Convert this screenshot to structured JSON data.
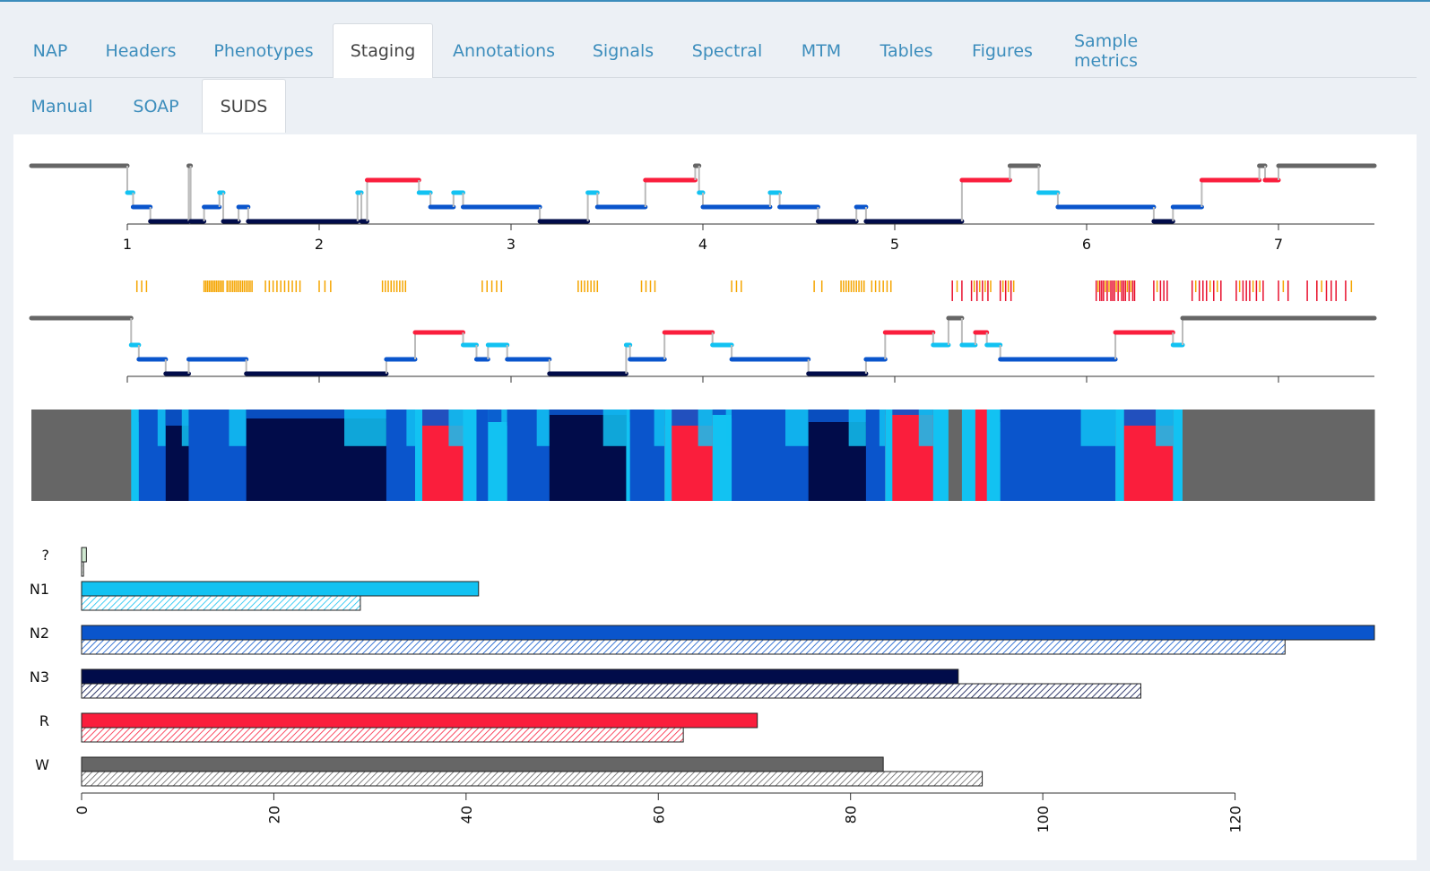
{
  "tabs": {
    "main": [
      {
        "label": "NAP",
        "name": "tab-nap",
        "w": 82
      },
      {
        "label": "Headers",
        "name": "tab-headers",
        "w": 120
      },
      {
        "label": "Phenotypes",
        "name": "tab-phenotypes",
        "w": 154
      },
      {
        "label": "Staging",
        "name": "tab-staging",
        "w": 112,
        "active": true
      },
      {
        "label": "Annotations",
        "name": "tab-annotations",
        "w": 158
      },
      {
        "label": "Signals",
        "name": "tab-signals",
        "w": 108
      },
      {
        "label": "Spectral",
        "name": "tab-spectral",
        "w": 124
      },
      {
        "label": "MTM",
        "name": "tab-mtm",
        "w": 86
      },
      {
        "label": "Tables",
        "name": "tab-tables",
        "w": 104
      },
      {
        "label": "Figures",
        "name": "tab-figures",
        "w": 110
      },
      {
        "label": "Sample metrics",
        "name": "tab-sample-metrics",
        "w": 170
      }
    ],
    "sub": [
      {
        "label": "Manual",
        "name": "subtab-manual",
        "w": 108
      },
      {
        "label": "SOAP",
        "name": "subtab-soap",
        "w": 102
      },
      {
        "label": "SUDS",
        "name": "subtab-suds",
        "w": 94,
        "active": true
      }
    ]
  },
  "colors": {
    "W": "#666666",
    "N1": "#12c2f2",
    "N2": "#0a55cc",
    "N3": "#010c4a",
    "R": "#fa1e3c",
    "U": "#cfe8d0",
    "connector": "#bbbbbb",
    "conf_low": "#f5a500",
    "conf_high": "#e8102e"
  },
  "chart_data": [
    {
      "type": "hypnogram",
      "series": "stages-a",
      "x_ticks": [
        "1",
        "2",
        "3",
        "4",
        "5",
        "6",
        "7"
      ],
      "xlim": [
        0.5,
        7.5
      ],
      "stages": [
        [
          "W",
          0.5,
          1.0
        ],
        [
          "N1",
          1.0,
          1.03
        ],
        [
          "N2",
          1.03,
          1.12
        ],
        [
          "N3",
          1.12,
          1.32
        ],
        [
          "W",
          1.32,
          1.33
        ],
        [
          "N3",
          1.33,
          1.4
        ],
        [
          "N2",
          1.4,
          1.48
        ],
        [
          "N1",
          1.48,
          1.5
        ],
        [
          "N3",
          1.5,
          1.58
        ],
        [
          "N2",
          1.58,
          1.63
        ],
        [
          "N3",
          1.63,
          2.2
        ],
        [
          "N1",
          2.2,
          2.22
        ],
        [
          "N3",
          2.22,
          2.25
        ],
        [
          "R",
          2.25,
          2.52
        ],
        [
          "N1",
          2.52,
          2.58
        ],
        [
          "N2",
          2.58,
          2.7
        ],
        [
          "N1",
          2.7,
          2.75
        ],
        [
          "N2",
          2.75,
          3.15
        ],
        [
          "N3",
          3.15,
          3.4
        ],
        [
          "N1",
          3.4,
          3.45
        ],
        [
          "N2",
          3.45,
          3.7
        ],
        [
          "R",
          3.7,
          3.96
        ],
        [
          "W",
          3.96,
          3.98
        ],
        [
          "N1",
          3.98,
          4.0
        ],
        [
          "N2",
          4.0,
          4.35
        ],
        [
          "N1",
          4.35,
          4.4
        ],
        [
          "N2",
          4.4,
          4.6
        ],
        [
          "N3",
          4.6,
          4.8
        ],
        [
          "N2",
          4.8,
          4.85
        ],
        [
          "N3",
          4.85,
          5.35
        ],
        [
          "R",
          5.35,
          5.6
        ],
        [
          "W",
          5.6,
          5.75
        ],
        [
          "N1",
          5.75,
          5.85
        ],
        [
          "N2",
          5.85,
          6.35
        ],
        [
          "N3",
          6.35,
          6.45
        ],
        [
          "N2",
          6.45,
          6.6
        ],
        [
          "R",
          6.6,
          6.9
        ],
        [
          "W",
          6.9,
          6.93
        ],
        [
          "R",
          6.93,
          7.0
        ],
        [
          "W",
          7.0,
          7.5
        ]
      ]
    },
    {
      "type": "hypnogram",
      "series": "stages-b",
      "x_ticks": [
        "1",
        "2",
        "3",
        "4",
        "5",
        "6",
        "7"
      ],
      "xlim": [
        0.5,
        7.5
      ],
      "stages": [
        [
          "W",
          0.5,
          1.02
        ],
        [
          "N1",
          1.02,
          1.06
        ],
        [
          "N2",
          1.06,
          1.2
        ],
        [
          "N3",
          1.2,
          1.32
        ],
        [
          "N2",
          1.32,
          1.62
        ],
        [
          "N3",
          1.62,
          2.35
        ],
        [
          "N2",
          2.35,
          2.5
        ],
        [
          "R",
          2.5,
          2.75
        ],
        [
          "N1",
          2.75,
          2.82
        ],
        [
          "N2",
          2.82,
          2.88
        ],
        [
          "N1",
          2.88,
          2.98
        ],
        [
          "N2",
          2.98,
          3.2
        ],
        [
          "N3",
          3.2,
          3.6
        ],
        [
          "N1",
          3.6,
          3.62
        ],
        [
          "N2",
          3.62,
          3.8
        ],
        [
          "R",
          3.8,
          4.05
        ],
        [
          "N1",
          4.05,
          4.15
        ],
        [
          "N2",
          4.15,
          4.55
        ],
        [
          "N3",
          4.55,
          4.85
        ],
        [
          "N2",
          4.85,
          4.95
        ],
        [
          "R",
          4.95,
          5.2
        ],
        [
          "N1",
          5.2,
          5.28
        ],
        [
          "W",
          5.28,
          5.35
        ],
        [
          "N1",
          5.35,
          5.42
        ],
        [
          "R",
          5.42,
          5.48
        ],
        [
          "N1",
          5.48,
          5.55
        ],
        [
          "N2",
          5.55,
          6.15
        ],
        [
          "R",
          6.15,
          6.45
        ],
        [
          "N1",
          6.45,
          6.5
        ],
        [
          "W",
          6.5,
          7.5
        ]
      ]
    },
    {
      "type": "area",
      "series": "stage-probabilities",
      "note_colors": [
        "W",
        "N1",
        "N2",
        "N3",
        "R"
      ]
    },
    {
      "type": "bar",
      "orientation": "horizontal",
      "categories": [
        "?",
        "N1",
        "N2",
        "N3",
        "R",
        "W"
      ],
      "series": [
        {
          "values": [
            0.5,
            41.3,
            134.5,
            91.2,
            70.3,
            83.4
          ]
        },
        {
          "values": [
            0.2,
            29.0,
            125.2,
            110.2,
            62.6,
            93.7
          ]
        }
      ],
      "x_ticks": [
        "0",
        "20",
        "40",
        "60",
        "80",
        "100",
        "120"
      ],
      "xlim": [
        0,
        134.5
      ]
    }
  ]
}
